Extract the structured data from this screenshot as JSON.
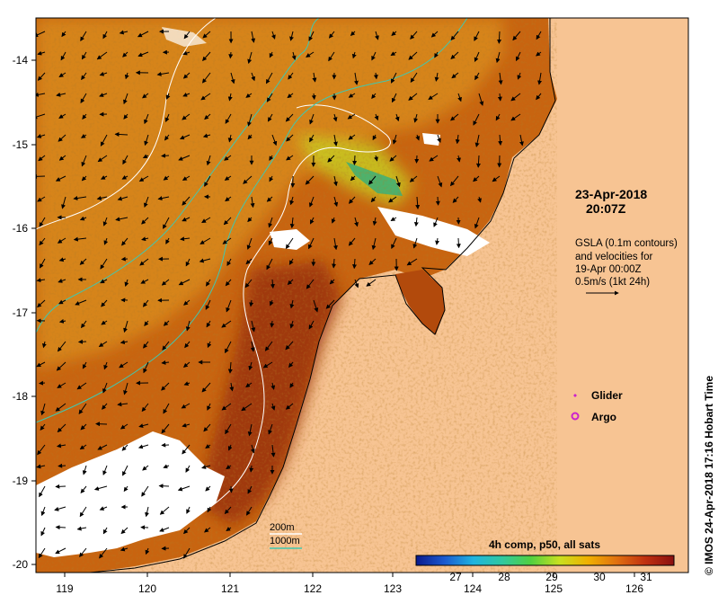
{
  "map": {
    "colors": {
      "land": "#f7c493",
      "sst_warm": "#c86410",
      "sst_hot": "#8e2a0c",
      "sst_cool": "#e8a020",
      "cloud": "#ffffff",
      "contour_200m": "#ffffff",
      "contour_1000m": "#40c8b0"
    },
    "lon_ticks": [
      "119",
      "120",
      "121",
      "122",
      "123",
      "124",
      "125",
      "126"
    ],
    "lat_ticks": [
      "-14",
      "-15",
      "-16",
      "-17",
      "-18",
      "-19",
      "-20"
    ],
    "date_line1": "23-Apr-2018",
    "date_line2": "20:07Z",
    "gsla_lines": [
      "GSLA (0.1m contours)",
      "and velocities for",
      "19-Apr 00:00Z",
      "0.5m/s (1kt 24h)"
    ],
    "legend": {
      "glider_label": "Glider",
      "glider_color": "#cc22cc",
      "argo_label": "Argo",
      "argo_color": "#cc22cc",
      "contour_200m_label": "200m",
      "contour_1000m_label": "1000m"
    },
    "colorbar": {
      "title": "4h comp, p50, all sats",
      "ticks": [
        "27",
        "28",
        "29",
        "30",
        "31"
      ],
      "colors": [
        "#0a1a8c",
        "#1a5ad0",
        "#20b4e0",
        "#30c8a0",
        "#50d040",
        "#c8e020",
        "#f0b000",
        "#e07010",
        "#c03010",
        "#8a1010"
      ]
    },
    "credit": "© IMOS 24-Apr-2018 17:16 Hobart Time"
  }
}
